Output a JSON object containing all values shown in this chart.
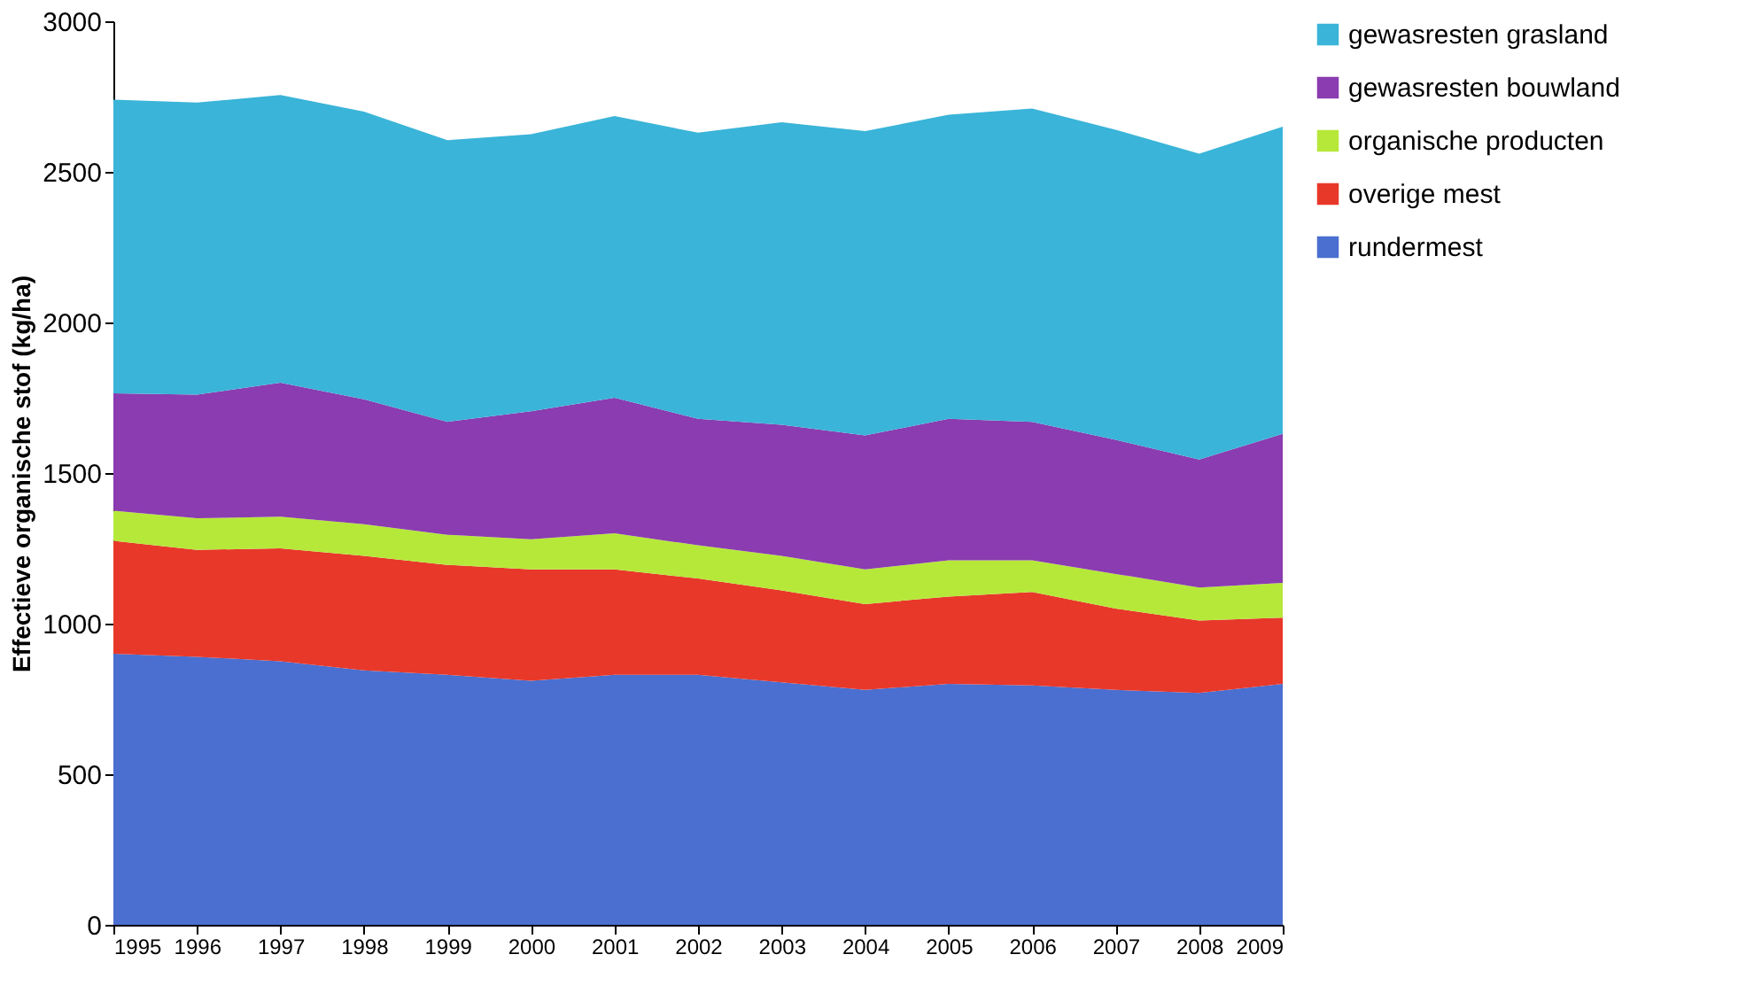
{
  "chart_data": {
    "type": "area",
    "stacked": true,
    "ylabel": "Effectieve organische stof (kg/ha)",
    "x": [
      1995,
      1996,
      1997,
      1998,
      1999,
      2000,
      2001,
      2002,
      2003,
      2004,
      2005,
      2006,
      2007,
      2008,
      2009
    ],
    "xlim": [
      1995,
      2009
    ],
    "xticks": [
      1995,
      1996,
      1997,
      1998,
      1999,
      2000,
      2001,
      2002,
      2003,
      2004,
      2005,
      2006,
      2007,
      2008,
      2009
    ],
    "ylim": [
      0,
      3000
    ],
    "yticks": [
      0,
      500,
      1000,
      1500,
      2000,
      2500,
      3000
    ],
    "grid": false,
    "legend": "right",
    "series": [
      {
        "name": "rundermest",
        "color": "#4a6fd0",
        "values": [
          900,
          890,
          875,
          845,
          830,
          810,
          830,
          830,
          805,
          780,
          800,
          795,
          780,
          770,
          800
        ]
      },
      {
        "name": "overige mest",
        "color": "#e8382a",
        "values": [
          375,
          355,
          375,
          380,
          365,
          370,
          350,
          320,
          305,
          285,
          290,
          310,
          270,
          240,
          220
        ]
      },
      {
        "name": "organische producten",
        "color": "#b6e83a",
        "values": [
          100,
          105,
          105,
          105,
          100,
          100,
          120,
          110,
          115,
          115,
          120,
          105,
          115,
          110,
          115
        ]
      },
      {
        "name": "gewasresten bouwland",
        "color": "#8a3cb0",
        "values": [
          390,
          410,
          445,
          415,
          375,
          425,
          450,
          420,
          435,
          445,
          470,
          460,
          445,
          425,
          495
        ]
      },
      {
        "name": "gewasresten grasland",
        "color": "#3ab4d8",
        "values": [
          975,
          970,
          955,
          955,
          935,
          920,
          935,
          950,
          1005,
          1010,
          1010,
          1040,
          1030,
          1015,
          1020
        ]
      }
    ]
  }
}
